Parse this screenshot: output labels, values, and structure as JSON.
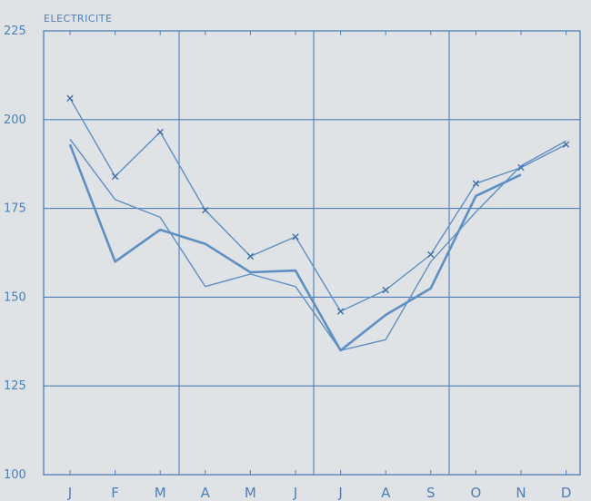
{
  "chart_data": {
    "type": "line",
    "title": "ELECTRICITE",
    "xlabel": "",
    "ylabel": "",
    "categories": [
      "J",
      "F",
      "M",
      "A",
      "M",
      "J",
      "J",
      "A",
      "S",
      "O",
      "N",
      "D"
    ],
    "ylim": [
      100,
      225
    ],
    "yticks": [
      100,
      125,
      150,
      175,
      200,
      225
    ],
    "grid": true,
    "legend": "none",
    "colors": {
      "background": "#dfe3e6",
      "axis": "#4f7fb5",
      "grid": "#4f7fb5",
      "line": "#5f8fc2"
    },
    "series": [
      {
        "values": [
          206,
          184,
          196.5,
          174.5,
          161.5,
          167,
          146,
          152,
          162,
          182,
          186.5,
          193
        ],
        "marker": "x",
        "weight": "thin"
      },
      {
        "values": [
          194.5,
          177.5,
          172.5,
          153,
          156.5,
          153,
          135,
          138,
          160,
          174,
          187,
          194
        ],
        "marker": "none",
        "weight": "thin"
      },
      {
        "values": [
          193,
          160,
          169,
          165,
          157,
          157.5,
          135,
          145,
          152.5,
          178.5,
          184.5,
          null
        ],
        "marker": "none",
        "weight": "thick"
      }
    ]
  }
}
